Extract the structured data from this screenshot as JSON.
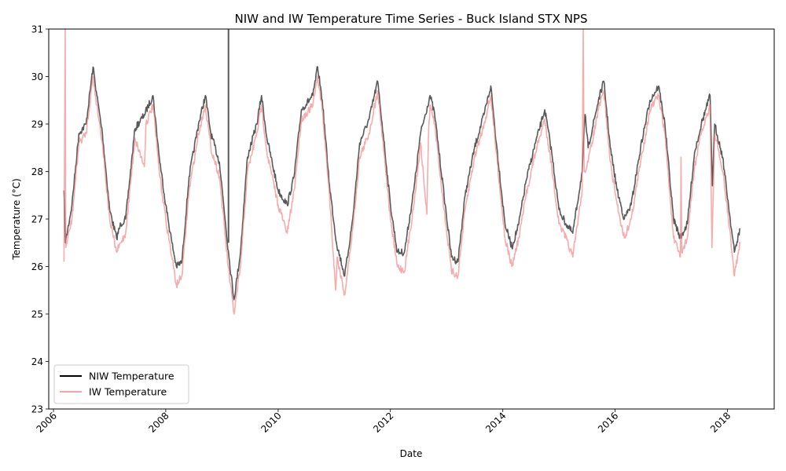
{
  "chart_data": {
    "type": "line",
    "title": "NIW and IW Temperature Time Series - Buck Island STX NPS",
    "xlabel": "Date",
    "ylabel": "Temperature (°C)",
    "xlim": [
      "2005-12-01",
      "2018-11-01"
    ],
    "ylim": [
      23,
      31
    ],
    "x_ticks": [
      "2006",
      "2008",
      "2010",
      "2012",
      "2014",
      "2016",
      "2018"
    ],
    "y_ticks": [
      23,
      24,
      25,
      26,
      27,
      28,
      29,
      30,
      31
    ],
    "grid": false,
    "legend_position": "lower-left",
    "series": [
      {
        "name": "NIW Temperature",
        "color": "#000000",
        "points": [
          [
            "2006-03-10",
            27.6
          ],
          [
            "2006-03-20",
            26.5
          ],
          [
            "2006-05-01",
            27.3
          ],
          [
            "2006-06-15",
            28.8
          ],
          [
            "2006-08-01",
            29.0
          ],
          [
            "2006-09-15",
            30.2
          ],
          [
            "2006-10-10",
            29.6
          ],
          [
            "2006-11-15",
            28.8
          ],
          [
            "2007-01-01",
            27.2
          ],
          [
            "2007-02-15",
            26.6
          ],
          [
            "2007-03-15",
            26.9
          ],
          [
            "2007-04-15",
            27.0
          ],
          [
            "2007-06-15",
            28.9
          ],
          [
            "2007-08-15",
            29.2
          ],
          [
            "2007-10-10",
            29.6
          ],
          [
            "2007-11-20",
            28.3
          ],
          [
            "2008-01-01",
            27.3
          ],
          [
            "2008-02-10",
            26.5
          ],
          [
            "2008-03-10",
            26.0
          ],
          [
            "2008-04-15",
            26.1
          ],
          [
            "2008-06-01",
            27.9
          ],
          [
            "2008-08-01",
            29.0
          ],
          [
            "2008-09-15",
            29.6
          ],
          [
            "2008-10-20",
            28.8
          ],
          [
            "2008-12-15",
            28.2
          ],
          [
            "2009-02-15",
            26.2
          ],
          [
            "2009-03-20",
            25.3
          ],
          [
            "2009-05-01",
            26.3
          ],
          [
            "2009-06-15",
            28.3
          ],
          [
            "2009-08-15",
            29.0
          ],
          [
            "2009-09-15",
            29.6
          ],
          [
            "2009-10-20",
            28.7
          ],
          [
            "2010-01-01",
            27.6
          ],
          [
            "2010-03-01",
            27.3
          ],
          [
            "2010-04-15",
            27.9
          ],
          [
            "2010-06-01",
            29.3
          ],
          [
            "2010-08-15",
            29.6
          ],
          [
            "2010-09-15",
            30.2
          ],
          [
            "2010-10-15",
            29.5
          ],
          [
            "2010-12-01",
            27.7
          ],
          [
            "2011-01-15",
            26.5
          ],
          [
            "2011-03-10",
            25.8
          ],
          [
            "2011-05-01",
            27.0
          ],
          [
            "2011-06-15",
            28.6
          ],
          [
            "2011-08-15",
            29.1
          ],
          [
            "2011-10-10",
            29.9
          ],
          [
            "2011-11-15",
            28.8
          ],
          [
            "2012-01-01",
            27.3
          ],
          [
            "2012-02-15",
            26.3
          ],
          [
            "2012-04-01",
            26.3
          ],
          [
            "2012-06-01",
            27.6
          ],
          [
            "2012-07-15",
            28.8
          ],
          [
            "2012-09-15",
            29.6
          ],
          [
            "2012-10-15",
            29.2
          ],
          [
            "2012-12-15",
            27.5
          ],
          [
            "2013-02-01",
            26.2
          ],
          [
            "2013-03-15",
            26.1
          ],
          [
            "2013-05-01",
            27.5
          ],
          [
            "2013-07-01",
            28.5
          ],
          [
            "2013-09-01",
            29.2
          ],
          [
            "2013-10-15",
            29.8
          ],
          [
            "2013-11-20",
            28.6
          ],
          [
            "2014-01-15",
            26.9
          ],
          [
            "2014-03-01",
            26.4
          ],
          [
            "2014-04-15",
            26.9
          ],
          [
            "2014-06-01",
            27.8
          ],
          [
            "2014-08-01",
            28.6
          ],
          [
            "2014-10-01",
            29.3
          ],
          [
            "2014-11-15",
            28.4
          ],
          [
            "2015-01-01",
            27.2
          ],
          [
            "2015-02-15",
            26.9
          ],
          [
            "2015-04-01",
            26.7
          ],
          [
            "2015-06-01",
            28.0
          ],
          [
            "2015-06-20",
            29.2
          ],
          [
            "2015-07-10",
            28.5
          ],
          [
            "2015-09-15",
            29.5
          ],
          [
            "2015-10-20",
            29.9
          ],
          [
            "2015-12-01",
            28.5
          ],
          [
            "2016-01-15",
            27.6
          ],
          [
            "2016-03-01",
            27.0
          ],
          [
            "2016-04-15",
            27.3
          ],
          [
            "2016-06-15",
            28.5
          ],
          [
            "2016-08-15",
            29.5
          ],
          [
            "2016-10-10",
            29.8
          ],
          [
            "2016-11-20",
            29.0
          ],
          [
            "2017-01-15",
            27.0
          ],
          [
            "2017-03-01",
            26.6
          ],
          [
            "2017-04-15",
            26.9
          ],
          [
            "2017-06-01",
            28.4
          ],
          [
            "2017-07-15",
            29.0
          ],
          [
            "2017-09-10",
            29.6
          ],
          [
            "2017-09-25",
            27.7
          ],
          [
            "2017-10-10",
            29.0
          ],
          [
            "2017-12-01",
            28.3
          ],
          [
            "2018-01-15",
            27.1
          ],
          [
            "2018-02-15",
            26.3
          ],
          [
            "2018-03-25",
            26.8
          ]
        ]
      },
      {
        "name": "IW Temperature",
        "color": "#f08080",
        "points": [
          [
            "2006-03-10",
            26.1
          ],
          [
            "2006-03-18",
            31.0
          ],
          [
            "2006-03-22",
            26.4
          ],
          [
            "2006-05-01",
            27.0
          ],
          [
            "2006-06-15",
            28.6
          ],
          [
            "2006-08-01",
            28.8
          ],
          [
            "2006-09-15",
            30.0
          ],
          [
            "2006-10-10",
            29.4
          ],
          [
            "2006-11-15",
            28.6
          ],
          [
            "2007-01-01",
            27.0
          ],
          [
            "2007-02-15",
            26.3
          ],
          [
            "2007-03-15",
            26.5
          ],
          [
            "2007-04-15",
            26.7
          ],
          [
            "2007-06-15",
            28.7
          ],
          [
            "2007-08-15",
            28.1
          ],
          [
            "2007-08-25",
            29.0
          ],
          [
            "2007-10-10",
            29.4
          ],
          [
            "2007-11-20",
            28.0
          ],
          [
            "2008-01-01",
            27.0
          ],
          [
            "2008-02-10",
            26.2
          ],
          [
            "2008-03-10",
            25.6
          ],
          [
            "2008-04-15",
            25.8
          ],
          [
            "2008-06-01",
            27.6
          ],
          [
            "2008-08-01",
            28.8
          ],
          [
            "2008-09-15",
            29.4
          ],
          [
            "2008-10-20",
            28.5
          ],
          [
            "2008-12-15",
            27.9
          ],
          [
            "2009-02-10",
            26.0
          ],
          [
            "2009-03-20",
            25.0
          ],
          [
            "2009-05-01",
            26.0
          ],
          [
            "2009-06-15",
            28.0
          ],
          [
            "2009-08-15",
            28.8
          ],
          [
            "2009-09-15",
            29.4
          ],
          [
            "2009-10-20",
            28.4
          ],
          [
            "2010-01-01",
            27.3
          ],
          [
            "2010-03-01",
            26.7
          ],
          [
            "2010-04-15",
            27.6
          ],
          [
            "2010-06-01",
            29.1
          ],
          [
            "2010-08-15",
            29.4
          ],
          [
            "2010-09-15",
            30.0
          ],
          [
            "2010-10-15",
            29.3
          ],
          [
            "2010-12-01",
            27.5
          ],
          [
            "2011-01-10",
            25.5
          ],
          [
            "2011-01-20",
            26.2
          ],
          [
            "2011-03-10",
            25.4
          ],
          [
            "2011-05-01",
            26.8
          ],
          [
            "2011-06-15",
            28.3
          ],
          [
            "2011-08-15",
            28.8
          ],
          [
            "2011-10-10",
            29.7
          ],
          [
            "2011-11-15",
            28.6
          ],
          [
            "2012-01-01",
            27.0
          ],
          [
            "2012-02-15",
            26.0
          ],
          [
            "2012-04-01",
            25.9
          ],
          [
            "2012-06-01",
            27.3
          ],
          [
            "2012-07-15",
            28.6
          ],
          [
            "2012-08-25",
            27.1
          ],
          [
            "2012-09-05",
            28.8
          ],
          [
            "2012-09-15",
            29.4
          ],
          [
            "2012-10-15",
            29.0
          ],
          [
            "2012-12-15",
            27.2
          ],
          [
            "2013-02-01",
            25.9
          ],
          [
            "2013-03-15",
            25.8
          ],
          [
            "2013-05-01",
            27.2
          ],
          [
            "2013-07-01",
            28.3
          ],
          [
            "2013-09-01",
            29.0
          ],
          [
            "2013-10-15",
            29.6
          ],
          [
            "2013-11-20",
            28.4
          ],
          [
            "2014-01-15",
            26.6
          ],
          [
            "2014-03-01",
            26.0
          ],
          [
            "2014-04-15",
            26.6
          ],
          [
            "2014-06-01",
            27.5
          ],
          [
            "2014-08-01",
            28.4
          ],
          [
            "2014-10-01",
            29.1
          ],
          [
            "2014-11-15",
            28.1
          ],
          [
            "2015-01-01",
            26.9
          ],
          [
            "2015-02-15",
            26.6
          ],
          [
            "2015-04-01",
            26.2
          ],
          [
            "2015-06-01",
            27.6
          ],
          [
            "2015-06-08",
            31.0
          ],
          [
            "2015-06-14",
            28.0
          ],
          [
            "2015-07-10",
            28.2
          ],
          [
            "2015-09-15",
            29.3
          ],
          [
            "2015-10-20",
            29.7
          ],
          [
            "2015-12-01",
            28.2
          ],
          [
            "2016-01-15",
            27.3
          ],
          [
            "2016-03-01",
            26.6
          ],
          [
            "2016-04-15",
            27.0
          ],
          [
            "2016-06-15",
            28.2
          ],
          [
            "2016-08-15",
            29.3
          ],
          [
            "2016-10-10",
            29.6
          ],
          [
            "2016-11-20",
            28.8
          ],
          [
            "2017-01-15",
            26.6
          ],
          [
            "2017-03-01",
            26.2
          ],
          [
            "2017-03-05",
            28.3
          ],
          [
            "2017-03-10",
            26.3
          ],
          [
            "2017-04-15",
            26.6
          ],
          [
            "2017-06-01",
            28.1
          ],
          [
            "2017-07-15",
            28.8
          ],
          [
            "2017-09-10",
            29.4
          ],
          [
            "2017-09-22",
            26.4
          ],
          [
            "2017-10-10",
            28.8
          ],
          [
            "2017-12-01",
            28.0
          ],
          [
            "2018-01-15",
            26.8
          ],
          [
            "2018-02-15",
            25.8
          ],
          [
            "2018-03-25",
            26.5
          ]
        ]
      }
    ]
  }
}
